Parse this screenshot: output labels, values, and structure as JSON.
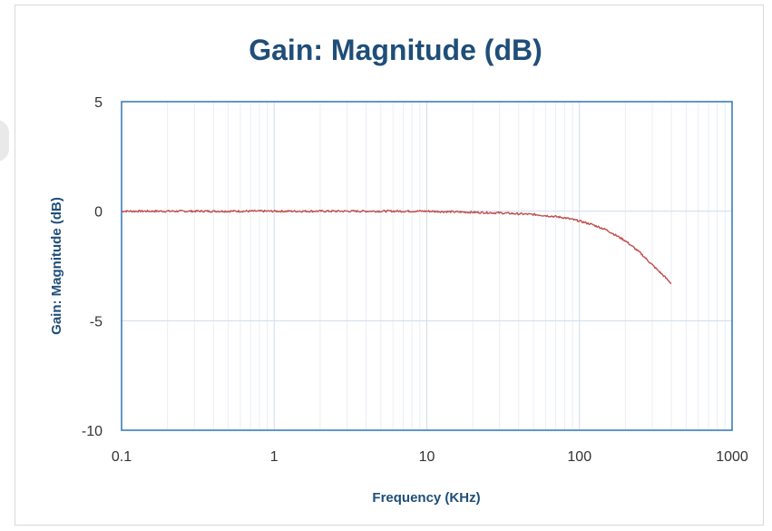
{
  "chart_data": {
    "type": "line",
    "title": "Gain: Magnitude (dB)",
    "xlabel": "Frequency (KHz)",
    "ylabel": "Gain: Magnitude (dB)",
    "x_scale": "log",
    "xlim": [
      0.1,
      1000
    ],
    "ylim": [
      -10,
      5
    ],
    "x_ticks": [
      "0.1",
      "1",
      "10",
      "100",
      "1000"
    ],
    "y_ticks": [
      "5",
      "0",
      "-5",
      "-10"
    ],
    "grid": true,
    "legend": "none",
    "series": [
      {
        "color": "#c0504d",
        "x": [
          0.1,
          0.2,
          0.5,
          1,
          2,
          5,
          10,
          20,
          30,
          40,
          50,
          60,
          70,
          80,
          100,
          120,
          150,
          200,
          250,
          300,
          350,
          400
        ],
        "y": [
          0.0,
          0.0,
          0.0,
          0.0,
          0.0,
          0.0,
          0.0,
          -0.05,
          -0.08,
          -0.12,
          -0.15,
          -0.2,
          -0.25,
          -0.3,
          -0.45,
          -0.6,
          -0.85,
          -1.35,
          -1.9,
          -2.45,
          -2.9,
          -3.3
        ]
      }
    ]
  },
  "colors": {
    "title": "#1f4e79",
    "axis": "#2e75b6",
    "series": "#c0504d"
  }
}
